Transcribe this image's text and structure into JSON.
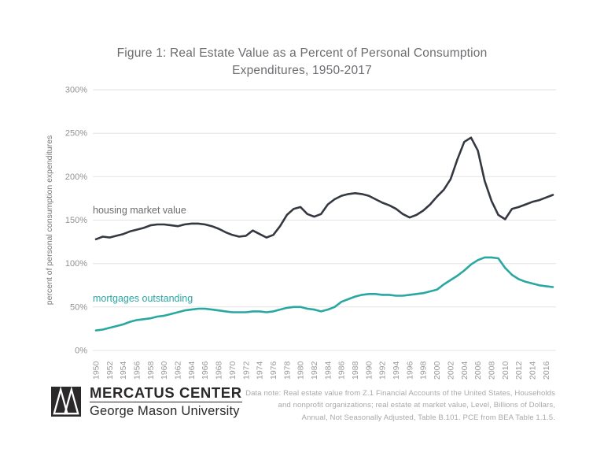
{
  "title": "Figure 1: Real Estate Value as a Percent of Personal Consumption Expenditures, 1950-2017",
  "chart_data": {
    "type": "line",
    "title": "Figure 1: Real Estate Value as a Percent of Personal Consumption Expenditures, 1950-2017",
    "ylabel": "percent of personal consumption expenditures",
    "xlabel": "",
    "ylim": [
      0,
      300
    ],
    "y_ticks": [
      0,
      50,
      100,
      150,
      200,
      250,
      300
    ],
    "y_tick_format": "{v}%",
    "x_ticks": [
      1950,
      1952,
      1954,
      1956,
      1958,
      1960,
      1962,
      1964,
      1966,
      1968,
      1970,
      1972,
      1974,
      1976,
      1978,
      1980,
      1982,
      1984,
      1986,
      1988,
      1990,
      1992,
      1994,
      1996,
      1998,
      2000,
      2002,
      2004,
      2006,
      2008,
      2010,
      2012,
      2014,
      2016
    ],
    "grid": "horizontal",
    "legend_position": "inline-labels",
    "x": [
      1950,
      1951,
      1952,
      1953,
      1954,
      1955,
      1956,
      1957,
      1958,
      1959,
      1960,
      1961,
      1962,
      1963,
      1964,
      1965,
      1966,
      1967,
      1968,
      1969,
      1970,
      1971,
      1972,
      1973,
      1974,
      1975,
      1976,
      1977,
      1978,
      1979,
      1980,
      1981,
      1982,
      1983,
      1984,
      1985,
      1986,
      1987,
      1988,
      1989,
      1990,
      1991,
      1992,
      1993,
      1994,
      1995,
      1996,
      1997,
      1998,
      1999,
      2000,
      2001,
      2002,
      2003,
      2004,
      2005,
      2006,
      2007,
      2008,
      2009,
      2010,
      2011,
      2012,
      2013,
      2014,
      2015,
      2016,
      2017
    ],
    "series": [
      {
        "name": "housing market value",
        "color": "#343941",
        "label_color": "#6a6c6f",
        "values": [
          128,
          131,
          130,
          132,
          134,
          137,
          139,
          141,
          144,
          145,
          145,
          144,
          143,
          145,
          146,
          146,
          145,
          143,
          140,
          136,
          133,
          131,
          132,
          138,
          134,
          130,
          133,
          143,
          156,
          163,
          165,
          157,
          154,
          157,
          168,
          174,
          178,
          180,
          181,
          180,
          178,
          174,
          170,
          167,
          163,
          157,
          153,
          156,
          161,
          168,
          177,
          185,
          197,
          220,
          240,
          245,
          230,
          195,
          172,
          156,
          151,
          163,
          165,
          168,
          171,
          173,
          176,
          179
        ]
      },
      {
        "name": "mortgages outstanding",
        "color": "#29a8a2",
        "label_color": "#29a8a2",
        "values": [
          23,
          24,
          26,
          28,
          30,
          33,
          35,
          36,
          37,
          39,
          40,
          42,
          44,
          46,
          47,
          48,
          48,
          47,
          46,
          45,
          44,
          44,
          44,
          45,
          45,
          44,
          45,
          47,
          49,
          50,
          50,
          48,
          47,
          45,
          47,
          50,
          56,
          59,
          62,
          64,
          65,
          65,
          64,
          64,
          63,
          63,
          64,
          65,
          66,
          68,
          70,
          76,
          81,
          86,
          92,
          99,
          104,
          107,
          107,
          106,
          95,
          87,
          82,
          79,
          77,
          75,
          74,
          73
        ]
      }
    ],
    "gridline_color": "#e3e3e3",
    "tick_label_color": "#97999b"
  },
  "footer": {
    "logo": {
      "line1": "MERCATUS CENTER",
      "line2": "George Mason University"
    },
    "note_lines": [
      "Data note: Real estate value from  Z.1 Financial Accounts of the United States, Households",
      "and nonprofit organizations; real estate at market value, Level, Billions of Dollars,",
      "Annual, Not Seasonally Adjusted, Table B.101. PCE from BEA Table 1.1.5."
    ]
  }
}
